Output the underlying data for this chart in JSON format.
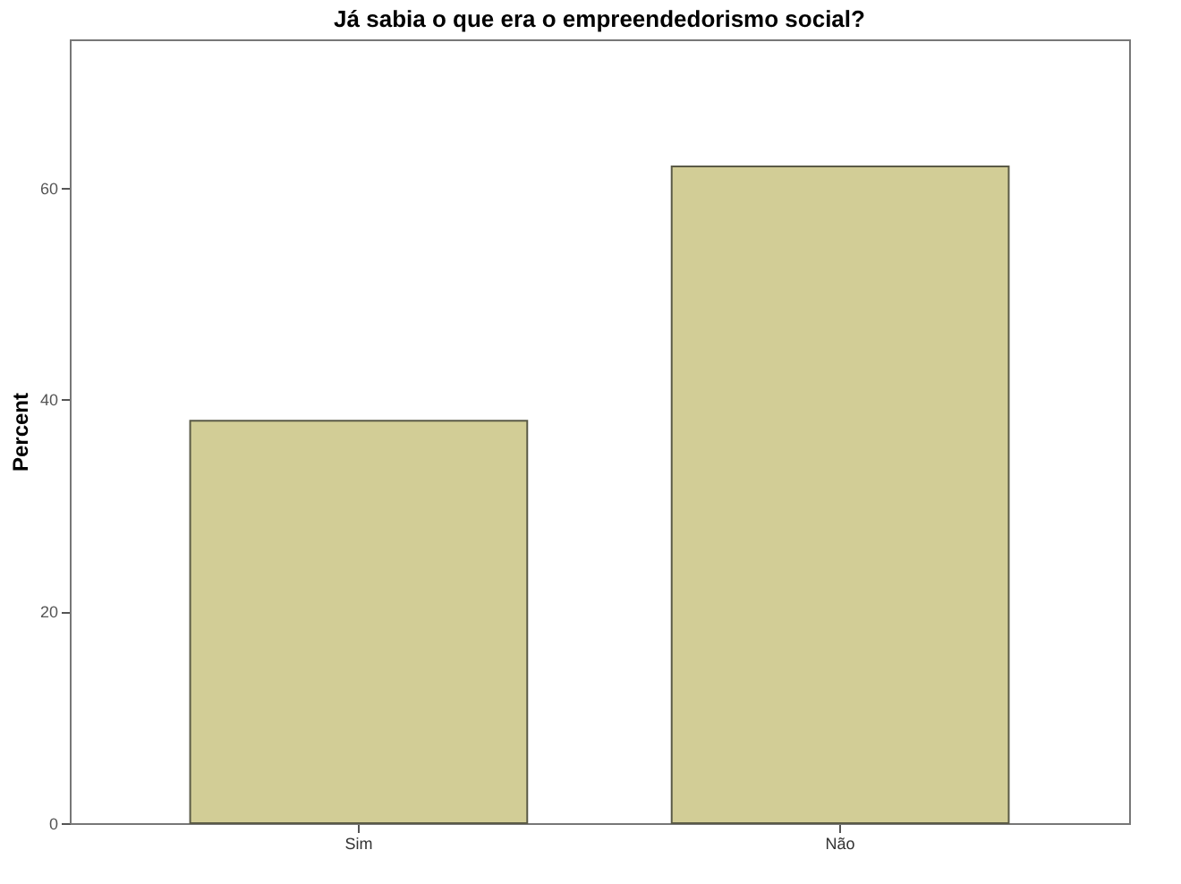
{
  "chart_data": {
    "type": "bar",
    "title": "Já sabia o que era o empreendedorismo social?",
    "ylabel": "Percent",
    "categories": [
      "Sim",
      "Não"
    ],
    "values": [
      38,
      62
    ],
    "color": "#d2cd96",
    "ylim": [
      0,
      74
    ],
    "yticks": [
      0,
      20,
      40,
      60
    ],
    "grid": false
  }
}
